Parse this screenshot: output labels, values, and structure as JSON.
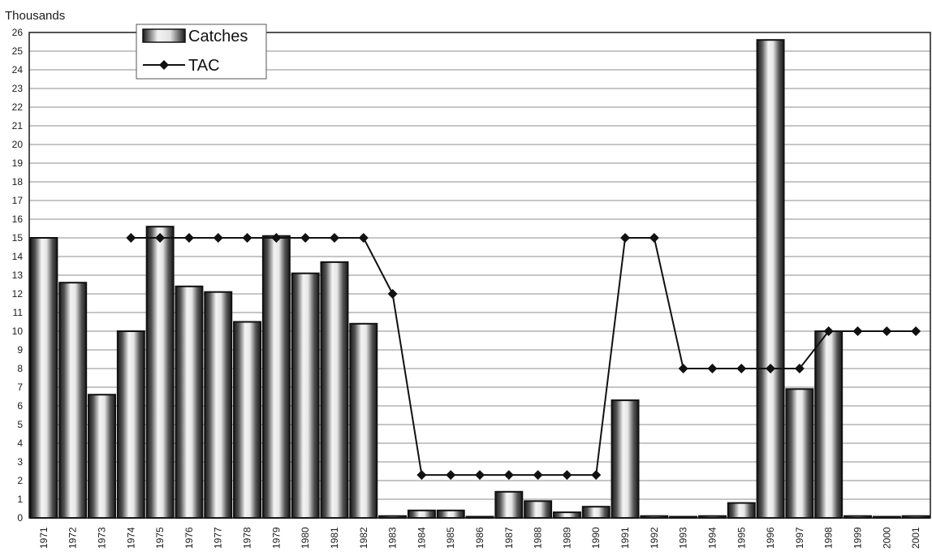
{
  "chart_data": {
    "type": "bar",
    "unit_label": "Thousands",
    "title": "",
    "xlabel": "",
    "ylabel": "",
    "ylim": [
      0,
      26
    ],
    "y_ticks": [
      0,
      1,
      2,
      3,
      4,
      5,
      6,
      7,
      8,
      9,
      10,
      11,
      12,
      13,
      14,
      15,
      16,
      17,
      18,
      19,
      20,
      21,
      22,
      23,
      24,
      25,
      26
    ],
    "grid": true,
    "legend_position": "top-left",
    "categories": [
      "1971",
      "1972",
      "1973",
      "1974",
      "1975",
      "1976",
      "1977",
      "1978",
      "1979",
      "1980",
      "1981",
      "1982",
      "1983",
      "1984",
      "1985",
      "1986",
      "1987",
      "1988",
      "1989",
      "1990",
      "1991",
      "1992",
      "1993",
      "1994",
      "1995",
      "1996",
      "1997",
      "1998",
      "1999",
      "2000",
      "2001"
    ],
    "series": [
      {
        "name": "Catches",
        "kind": "bar",
        "values": [
          15.0,
          12.6,
          6.6,
          10.0,
          15.6,
          12.4,
          12.1,
          10.5,
          15.1,
          13.1,
          13.7,
          10.4,
          0.1,
          0.4,
          0.4,
          0.0,
          1.4,
          0.9,
          0.3,
          0.6,
          6.3,
          0.1,
          0.0,
          0.1,
          0.8,
          25.6,
          6.9,
          10.0,
          0.1,
          0.0,
          0.1
        ]
      },
      {
        "name": "TAC",
        "kind": "line",
        "values": [
          null,
          null,
          null,
          15.0,
          15.0,
          15.0,
          15.0,
          15.0,
          15.0,
          15.0,
          15.0,
          15.0,
          12.0,
          2.3,
          2.3,
          2.3,
          2.3,
          2.3,
          2.3,
          2.3,
          15.0,
          15.0,
          8.0,
          8.0,
          8.0,
          8.0,
          8.0,
          10.0,
          10.0,
          10.0,
          10.0
        ]
      }
    ],
    "colors": {
      "bar_dark": "#1a1a1a",
      "bar_light": "#f2f2f2",
      "line": "#111111",
      "grid": "#8c8c8c"
    }
  }
}
